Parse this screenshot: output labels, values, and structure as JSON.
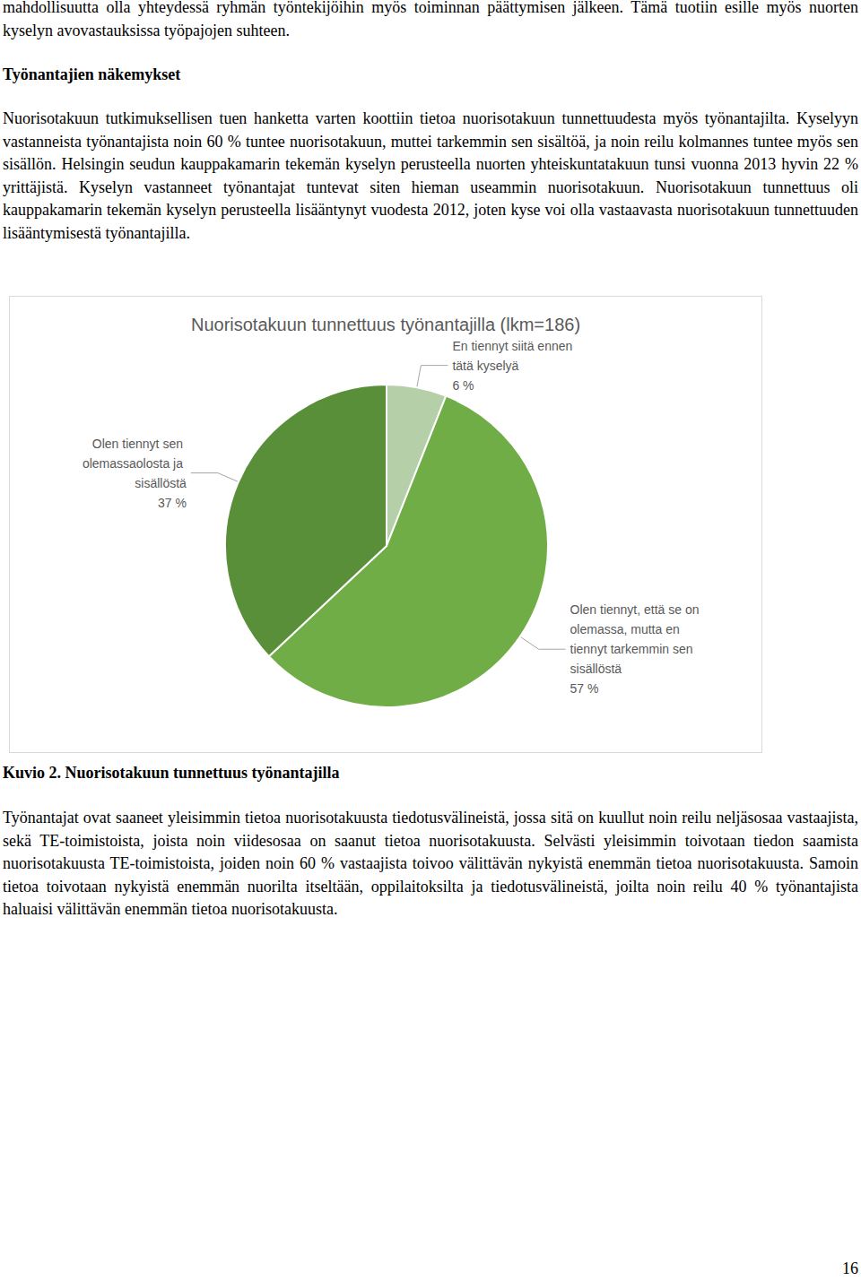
{
  "document": {
    "top_text": "mahdollisuutta olla yhteydessä ryhmän työntekijöihin myös toiminnan päättymisen jälkeen. Tämä tuotiin esille myös nuorten kyselyn avovastauksissa työpajojen suhteen.",
    "heading": "Työnantajien näkemykset",
    "paragraph_1": "Nuorisotakuun tutkimuksellisen tuen hanketta varten koottiin tietoa nuorisotakuun tunnettuudesta myös työnantajilta. Kyselyyn vastanneista työnantajista noin 60 % tuntee nuorisotakuun, muttei tarkemmin sen sisältöä, ja noin reilu kolmannes tuntee myös sen sisällön. Helsingin seudun kauppakamarin tekemän kyselyn perusteella nuorten yhteiskuntatakuun tunsi vuonna 2013 hyvin 22 % yrittäjistä. Kyselyn vastanneet työnantajat tuntevat siten hieman useammin nuorisotakuun. Nuorisotakuun tunnettuus oli kauppakamarin tekemän kyselyn perusteella lisääntynyt vuodesta 2012, joten kyse voi olla vastaavasta nuorisotakuun tunnettuuden lisääntymisestä työnantajilla.",
    "caption": "Kuvio 2. Nuorisotakuun tunnettuus työnantajilla",
    "paragraph_2": "Työnantajat ovat saaneet yleisimmin tietoa nuorisotakuusta tiedotusvälineistä, jossa sitä on kuullut noin reilu neljäsosaa vastaajista, sekä TE-toimistoista, joista noin viidesosaa on saanut tietoa nuorisotakuusta. Selvästi yleisimmin toivotaan tiedon saamista nuorisotakuusta TE-toimistoista, joiden noin 60 % vastaajista toivoo välittävän nykyistä enemmän tietoa nuorisotakuusta. Samoin tietoa toivotaan nykyistä enemmän nuorilta itseltään, oppilaitoksilta ja tiedotusvälineistä, joilta noin reilu 40 % työnantajista haluaisi välittävän enemmän tietoa nuorisotakuusta.",
    "page_number": "16"
  },
  "chart_data": {
    "type": "pie",
    "title": "Nuorisotakuun tunnettuus työnantajilla (lkm=186)",
    "categories": [
      "En tiennyt siitä ennen tätä kyselyä",
      "Olen tiennyt, että se on olemassa, mutta en tiennyt tarkemmin sen sisällöstä",
      "Olen tiennyt sen olemassaolosta ja sisällöstä"
    ],
    "values": [
      6,
      57,
      37
    ],
    "value_labels": [
      "6 %",
      "57 %",
      "37 %"
    ],
    "colors": [
      "#b5cfa8",
      "#70ad47",
      "#5a8f39"
    ],
    "data_labels": true
  }
}
